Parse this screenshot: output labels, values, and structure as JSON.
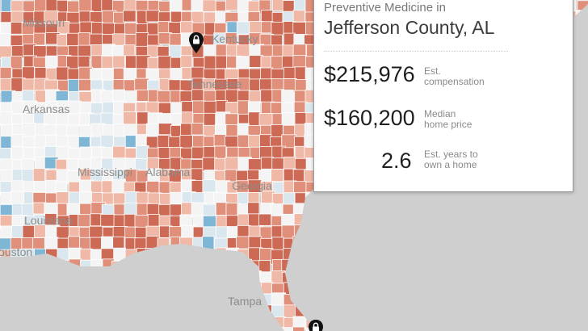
{
  "map": {
    "place_labels": {
      "missouri": "Missouri",
      "kentucky": "Kentucky",
      "tennessee": "Tennessee",
      "arkansas": "Arkansas",
      "mississippi": "Mississippi",
      "alabama": "Alabama",
      "georgia": "Georgia",
      "louisiana": "Louisiana",
      "houston": "Houston",
      "tampa": "Tampa"
    },
    "colors": {
      "water": "#cfcfcf",
      "county_none": "#f4f4f4",
      "county_dark_red": "#cd6a55",
      "county_red": "#e0907a",
      "county_salmon": "#f0b8a6",
      "county_pale_blue": "#dbe7ee",
      "county_blue": "#7fb6d6",
      "county_border": "#ffffff"
    },
    "pins": [
      "lock-pin-icon",
      "lock-pin-icon"
    ]
  },
  "panel": {
    "specialty": "Preventive Medicine in",
    "county": "Jefferson County, AL",
    "compensation": {
      "value": "$215,976",
      "label_line1": "Est.",
      "label_line2": "compensation"
    },
    "home_price": {
      "value": "$160,200",
      "label_line1": "Median",
      "label_line2": "home price"
    },
    "years": {
      "value": "2.6",
      "label_line1": "Est. years to",
      "label_line2": "own a home"
    }
  }
}
